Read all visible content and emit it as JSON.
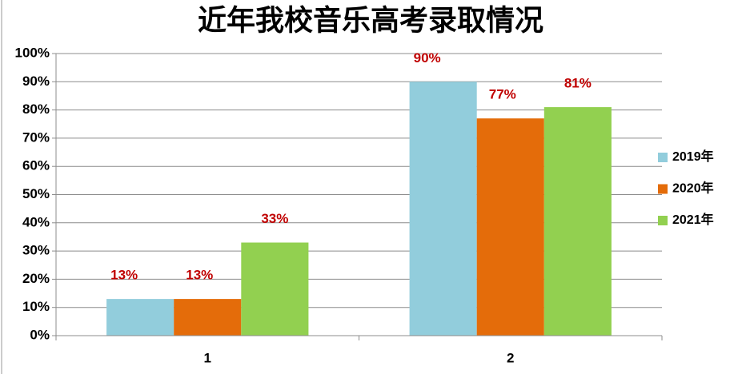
{
  "chart_data": {
    "type": "bar",
    "title": "近年我校音乐高考录取情况",
    "categories": [
      "1",
      "2"
    ],
    "series": [
      {
        "name": "2019年",
        "color": "#92cddc",
        "values": [
          13,
          90
        ],
        "value_labels": [
          "13%",
          "90%"
        ]
      },
      {
        "name": "2020年",
        "color": "#e46c0a",
        "values": [
          13,
          77
        ],
        "value_labels": [
          "13%",
          "77%"
        ]
      },
      {
        "name": "2021年",
        "color": "#92d050",
        "values": [
          33,
          81
        ],
        "value_labels": [
          "33%",
          "81%"
        ]
      }
    ],
    "ylim": [
      0,
      100
    ],
    "yticks": [
      {
        "value": 0,
        "label": "0%"
      },
      {
        "value": 10,
        "label": "10%"
      },
      {
        "value": 20,
        "label": "20%"
      },
      {
        "value": 30,
        "label": "30%"
      },
      {
        "value": 40,
        "label": "40%"
      },
      {
        "value": 50,
        "label": "50%"
      },
      {
        "value": 60,
        "label": "60%"
      },
      {
        "value": 70,
        "label": "70%"
      },
      {
        "value": 80,
        "label": "80%"
      },
      {
        "value": 90,
        "label": "90%"
      },
      {
        "value": 100,
        "label": "100%"
      }
    ],
    "grid": true,
    "legend": "right"
  }
}
